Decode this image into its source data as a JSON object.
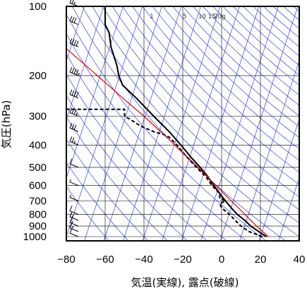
{
  "chart_data": {
    "type": "line",
    "subtype": "skew-T log-P diagram",
    "title": "",
    "xlabel": "気温(実線), 露点(破線)",
    "ylabel": "気圧(hPa)",
    "x_ticks": [
      "-80",
      "-60",
      "-40",
      "-20",
      "0",
      "20",
      "40"
    ],
    "y_ticks": [
      "100",
      "200",
      "300",
      "400",
      "500",
      "600",
      "700",
      "800",
      "900",
      "1000"
    ],
    "xlim": [
      -80,
      40
    ],
    "ylim": [
      1050,
      100
    ],
    "y_scale": "log",
    "grid": true,
    "mixing_ratio_labels": [
      "1",
      "5",
      "10",
      "15",
      "20g"
    ],
    "colors": {
      "temperature": "#000000",
      "dewpoint": "#000000",
      "parcel": "#e00000",
      "adiabats": "#3344dd",
      "grid": "#000000"
    },
    "series": [
      {
        "style": "solid",
        "points": [
          {
            "p": 1000,
            "t": 23
          },
          {
            "p": 950,
            "t": 19
          },
          {
            "p": 900,
            "t": 15
          },
          {
            "p": 850,
            "t": 12
          },
          {
            "p": 800,
            "t": 8
          },
          {
            "p": 750,
            "t": 5
          },
          {
            "p": 700,
            "t": 2
          },
          {
            "p": 650,
            "t": -1
          },
          {
            "p": 600,
            "t": -4
          },
          {
            "p": 550,
            "t": -7
          },
          {
            "p": 500,
            "t": -11
          },
          {
            "p": 450,
            "t": -16
          },
          {
            "p": 400,
            "t": -21
          },
          {
            "p": 350,
            "t": -27
          },
          {
            "p": 300,
            "t": -35
          },
          {
            "p": 250,
            "t": -44
          },
          {
            "p": 220,
            "t": -51
          },
          {
            "p": 200,
            "t": -53
          },
          {
            "p": 180,
            "t": -54
          },
          {
            "p": 170,
            "t": -55
          },
          {
            "p": 150,
            "t": -57
          },
          {
            "p": 130,
            "t": -58
          },
          {
            "p": 120,
            "t": -60
          },
          {
            "p": 110,
            "t": -60
          },
          {
            "p": 100,
            "t": -60
          }
        ]
      },
      {
        "style": "dashed",
        "points": [
          {
            "p": 1000,
            "t": 21
          },
          {
            "p": 950,
            "t": 14
          },
          {
            "p": 900,
            "t": 10
          },
          {
            "p": 850,
            "t": 7
          },
          {
            "p": 800,
            "t": 4
          },
          {
            "p": 750,
            "t": 0
          },
          {
            "p": 720,
            "t": -1
          },
          {
            "p": 700,
            "t": 2
          },
          {
            "p": 680,
            "t": -1
          },
          {
            "p": 650,
            "t": -1
          },
          {
            "p": 600,
            "t": -5
          },
          {
            "p": 550,
            "t": -8
          },
          {
            "p": 500,
            "t": -13
          },
          {
            "p": 450,
            "t": -18
          },
          {
            "p": 400,
            "t": -23
          },
          {
            "p": 370,
            "t": -27
          },
          {
            "p": 360,
            "t": -30
          },
          {
            "p": 350,
            "t": -35
          },
          {
            "p": 330,
            "t": -42
          },
          {
            "p": 310,
            "t": -47
          },
          {
            "p": 300,
            "t": -50
          },
          {
            "p": 280,
            "t": -50
          },
          {
            "p": 280,
            "t": -80
          }
        ]
      },
      {
        "style": "solid",
        "points": [
          {
            "p": 1000,
            "t": 24
          },
          {
            "p": 900,
            "t": 18
          },
          {
            "p": 800,
            "t": 12
          },
          {
            "p": 700,
            "t": 5
          },
          {
            "p": 600,
            "t": -3
          },
          {
            "p": 500,
            "t": -12
          },
          {
            "p": 400,
            "t": -24
          },
          {
            "p": 300,
            "t": -40
          },
          {
            "p": 250,
            "t": -51
          },
          {
            "p": 200,
            "t": -64
          },
          {
            "p": 150,
            "t": -81
          }
        ]
      }
    ],
    "wind_barbs": [
      {
        "p": 1000,
        "speed_kt": 10
      },
      {
        "p": 950,
        "speed_kt": 15
      },
      {
        "p": 900,
        "speed_kt": 15
      },
      {
        "p": 850,
        "speed_kt": 15
      },
      {
        "p": 800,
        "speed_kt": 10
      },
      {
        "p": 700,
        "speed_kt": 5
      },
      {
        "p": 600,
        "speed_kt": 5
      },
      {
        "p": 500,
        "speed_kt": 10
      },
      {
        "p": 400,
        "speed_kt": 25
      },
      {
        "p": 350,
        "speed_kt": 30
      },
      {
        "p": 300,
        "speed_kt": 35
      },
      {
        "p": 250,
        "speed_kt": 40
      },
      {
        "p": 200,
        "speed_kt": 45
      },
      {
        "p": 150,
        "speed_kt": 40
      },
      {
        "p": 120,
        "speed_kt": 30
      },
      {
        "p": 100,
        "speed_kt": 25
      }
    ]
  }
}
